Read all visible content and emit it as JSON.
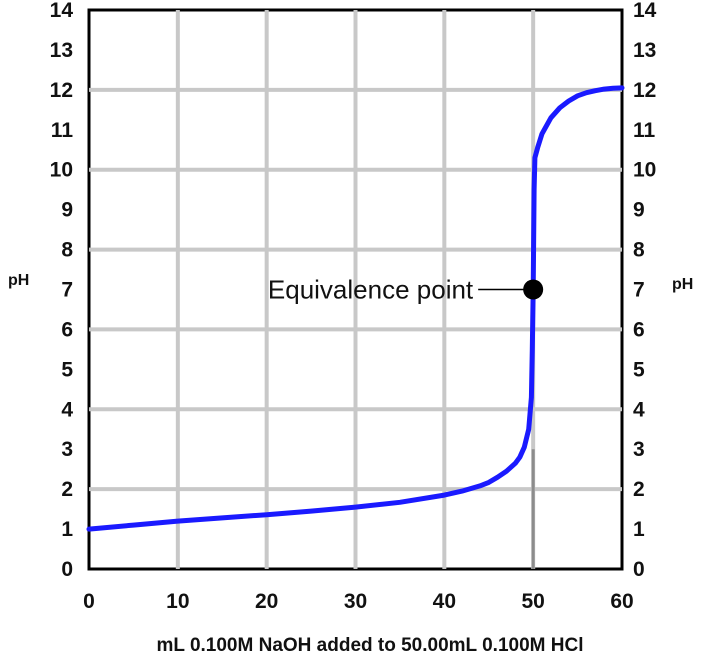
{
  "chart_data": {
    "type": "line",
    "title": "",
    "xlabel": "mL 0.100M NaOH added to 50.00mL 0.100M HCl",
    "ylabel_left": "pH",
    "ylabel_right": "pH",
    "xlim": [
      0,
      60
    ],
    "ylim": [
      0,
      14
    ],
    "x_ticks": [
      "0",
      "10",
      "20",
      "30",
      "40",
      "50",
      "60"
    ],
    "y_ticks": [
      "0",
      "1",
      "2",
      "3",
      "4",
      "5",
      "6",
      "7",
      "8",
      "9",
      "10",
      "11",
      "12",
      "13",
      "14"
    ],
    "grid": true,
    "series": [
      {
        "color": "#1a1aff",
        "x": [
          0,
          5,
          10,
          15,
          20,
          25,
          30,
          35,
          40,
          42,
          44,
          45,
          46,
          47,
          48,
          48.5,
          49,
          49.5,
          49.8,
          49.9,
          50,
          50.1,
          50.2,
          50.5,
          51,
          52,
          53,
          54,
          55,
          56,
          57,
          58,
          59,
          60
        ],
        "y": [
          1.0,
          1.1,
          1.2,
          1.28,
          1.36,
          1.45,
          1.55,
          1.67,
          1.85,
          1.95,
          2.08,
          2.17,
          2.3,
          2.45,
          2.65,
          2.8,
          3.05,
          3.5,
          4.3,
          5.5,
          7.0,
          9.5,
          10.3,
          10.55,
          10.9,
          11.3,
          11.55,
          11.72,
          11.85,
          11.93,
          11.98,
          12.02,
          12.04,
          12.05
        ]
      }
    ],
    "annotations": [
      {
        "text": "Equivalence point",
        "x": 50,
        "y": 7
      }
    ]
  }
}
